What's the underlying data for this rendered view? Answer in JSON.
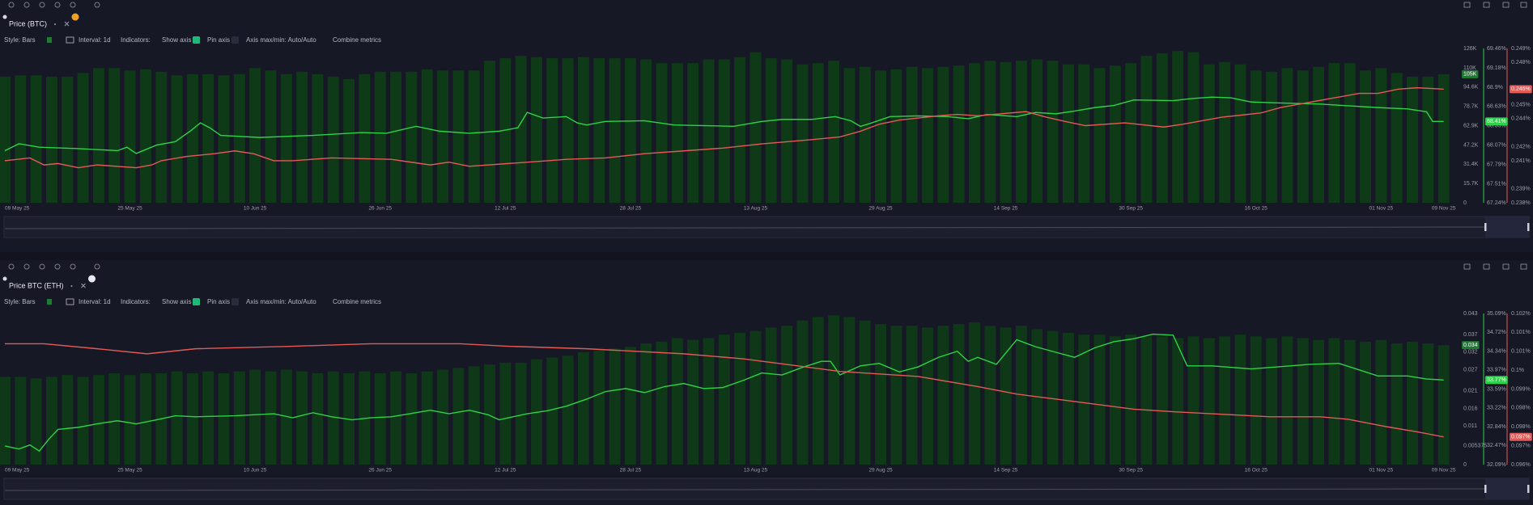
{
  "chart_data": [
    {
      "type": "bar",
      "title": "Price (BTC)",
      "controls": [
        "Style: Bars",
        "Interval: 1d",
        "Indicators:",
        "Show axis",
        "Pin axis",
        "Axis max/min: Auto/Auto",
        "Combine metrics"
      ],
      "xlim": [
        0,
        94.4
      ],
      "xticks": [
        {
          "value": 0,
          "label": "09 May 25"
        },
        {
          "value": 8,
          "label": "25 May 25"
        },
        {
          "value": 16,
          "label": "10 Jun 25"
        },
        {
          "value": 24,
          "label": "26 Jun 25"
        },
        {
          "value": 32,
          "label": "12 Jul 25"
        },
        {
          "value": 40,
          "label": "28 Jul 25"
        },
        {
          "value": 48,
          "label": "13 Aug 25"
        },
        {
          "value": 56,
          "label": "29 Aug 25"
        },
        {
          "value": 64,
          "label": "14 Sep 25"
        },
        {
          "value": 72,
          "label": "30 Sep 25"
        },
        {
          "value": 80,
          "label": "16 Oct 25"
        },
        {
          "value": 88,
          "label": "01 Nov 25"
        },
        {
          "value": 92,
          "label": "09 Nov 25"
        }
      ],
      "ylim": [
        0,
        126000
      ],
      "yticks": [
        0,
        {
          "value": 15700,
          "label": "15.7K"
        },
        {
          "value": 31400,
          "label": "31.4K"
        },
        {
          "value": 47200,
          "label": "47.2K"
        },
        {
          "value": 62900,
          "label": "62.9K"
        },
        {
          "value": 78700,
          "label": "78.7K"
        },
        {
          "value": 94600,
          "label": "94.6K"
        },
        {
          "value": 110000,
          "label": "110K"
        },
        {
          "value": 126000,
          "label": "126K"
        }
      ],
      "y2lim": [
        67.24,
        69.46
      ],
      "y2ticks": [
        {
          "value": 67.24,
          "label": "67.24%"
        },
        {
          "value": 67.51,
          "label": "67.51%"
        },
        {
          "value": 67.79,
          "label": "67.79%"
        },
        {
          "value": 68.07,
          "label": "68.07%"
        },
        {
          "value": 68.35,
          "label": "68.35%"
        },
        {
          "value": 68.63,
          "label": "68.63%"
        },
        {
          "value": 68.9,
          "label": "68.9%"
        },
        {
          "value": 69.18,
          "label": "69.18%"
        },
        {
          "value": 69.46,
          "label": "69.46%"
        }
      ],
      "y3lim": [
        0.238,
        0.249
      ],
      "y3ticks": [
        {
          "value": 0.238,
          "label": "0.238%"
        },
        {
          "value": 0.239,
          "label": "0.239%"
        },
        {
          "value": 0.241,
          "label": "0.241%"
        },
        {
          "value": 0.242,
          "label": "0.242%"
        },
        {
          "value": 0.244,
          "label": "0.244%"
        },
        {
          "value": 0.245,
          "label": "0.245%"
        },
        {
          "value": 0.246,
          "label": "0.246%"
        },
        {
          "value": 0.248,
          "label": "0.248%"
        },
        {
          "value": 0.249,
          "label": "0.249%"
        }
      ],
      "grid": false,
      "series": [
        {
          "type": "bar",
          "color": "#0f3a18",
          "axis": "y",
          "last_label": "105K",
          "values": [
            103000,
            104000,
            104000,
            103000,
            103000,
            106000,
            110000,
            110000,
            108000,
            109000,
            107000,
            104000,
            105000,
            105000,
            104000,
            105000,
            110000,
            108000,
            105000,
            107000,
            105000,
            103000,
            101000,
            105000,
            107000,
            107000,
            107000,
            109000,
            108000,
            108000,
            108000,
            116000,
            118000,
            120000,
            119000,
            118000,
            118000,
            119000,
            118000,
            118000,
            118000,
            117000,
            114000,
            114000,
            114000,
            117000,
            117000,
            119000,
            123000,
            118000,
            117000,
            113000,
            114000,
            116000,
            110000,
            111000,
            108000,
            109000,
            111000,
            110000,
            111000,
            112000,
            114000,
            116000,
            115000,
            116000,
            117000,
            116000,
            113000,
            113000,
            110000,
            112000,
            114000,
            120000,
            122000,
            124000,
            123000,
            113000,
            115000,
            113000,
            108000,
            107000,
            110000,
            108000,
            111000,
            114000,
            114000,
            108000,
            110000,
            106000,
            103000,
            103000,
            105000
          ]
        },
        {
          "type": "line",
          "color": "#2fd14a",
          "axis": "y2",
          "last_label": "68.41%",
          "x": [
            0,
            0.9,
            2.2,
            4.7,
            7.2,
            7.8,
            8.4,
            9.7,
            10.9,
            11.9,
            12.5,
            13.1,
            13.8,
            16.3,
            19.7,
            22.8,
            24.4,
            26.3,
            27.8,
            29.7,
            31.6,
            32.8,
            33.4,
            34.4,
            35.9,
            36.6,
            37.2,
            38.4,
            40.9,
            42.8,
            46.6,
            48.4,
            49.7,
            51.6,
            53.1,
            54.1,
            54.7,
            55.3,
            56.6,
            58.4,
            60.3,
            61.6,
            62.8,
            64.7,
            65.9,
            67.2,
            68.4,
            69.7,
            70.9,
            72.2,
            74.7,
            75.9,
            77.2,
            78.4,
            79.7,
            80.9,
            84.1,
            87.8,
            89.7,
            90.9,
            91.3,
            92
          ],
          "values": [
            67.99,
            68.09,
            68.04,
            68.02,
            67.99,
            68.04,
            67.95,
            68.07,
            68.12,
            68.28,
            68.39,
            68.32,
            68.21,
            68.18,
            68.21,
            68.25,
            68.24,
            68.34,
            68.27,
            68.24,
            68.27,
            68.32,
            68.54,
            68.46,
            68.48,
            68.39,
            68.36,
            68.41,
            68.42,
            68.36,
            68.34,
            68.41,
            68.44,
            68.44,
            68.48,
            68.42,
            68.34,
            68.38,
            68.48,
            68.49,
            68.48,
            68.45,
            68.51,
            68.48,
            68.54,
            68.52,
            68.56,
            68.61,
            68.64,
            68.72,
            68.71,
            68.74,
            68.76,
            68.75,
            68.69,
            68.68,
            68.66,
            68.61,
            68.59,
            68.55,
            68.41,
            68.41
          ]
        },
        {
          "type": "line",
          "color": "#e35a57",
          "axis": "y3",
          "last_label": "0.246%",
          "x": [
            0,
            1.6,
            2.5,
            3.4,
            4.7,
            5.9,
            8.4,
            9.4,
            10,
            11.6,
            13.4,
            14.7,
            15.9,
            17.2,
            18.4,
            20.9,
            24.7,
            27.2,
            28.4,
            29.7,
            32.2,
            34.7,
            35.9,
            38.4,
            40.9,
            43.4,
            45.9,
            48.4,
            51.6,
            53.4,
            54.7,
            55.9,
            57.2,
            59.7,
            60.9,
            62.2,
            65.3,
            66.6,
            67.8,
            69.1,
            71.6,
            74.1,
            75.3,
            77.8,
            80.3,
            81.6,
            84.1,
            86.6,
            87.8,
            89.1,
            90.3,
            92
          ],
          "values": [
            0.241,
            0.2412,
            0.2407,
            0.2408,
            0.2405,
            0.2407,
            0.2405,
            0.2407,
            0.241,
            0.2413,
            0.2415,
            0.2417,
            0.2415,
            0.241,
            0.241,
            0.2412,
            0.2411,
            0.2407,
            0.2409,
            0.2406,
            0.2408,
            0.241,
            0.2411,
            0.2412,
            0.2415,
            0.2417,
            0.2419,
            0.2422,
            0.2425,
            0.2427,
            0.2431,
            0.2436,
            0.2439,
            0.2442,
            0.2443,
            0.2442,
            0.2445,
            0.2441,
            0.2438,
            0.2435,
            0.2437,
            0.2434,
            0.2436,
            0.2441,
            0.2444,
            0.2448,
            0.2453,
            0.2458,
            0.2458,
            0.2461,
            0.2462,
            0.2461
          ]
        }
      ]
    },
    {
      "type": "bar",
      "title": "Price BTC (ETH)",
      "controls": [
        "Style: Bars",
        "Interval: 1d",
        "Indicators:",
        "Show axis",
        "Pin axis",
        "Axis max/min: Auto/Auto",
        "Combine metrics"
      ],
      "xlim": [
        0,
        94.4
      ],
      "xticks": [
        {
          "value": 0,
          "label": "09 May 25"
        },
        {
          "value": 8,
          "label": "25 May 25"
        },
        {
          "value": 16,
          "label": "10 Jun 25"
        },
        {
          "value": 24,
          "label": "26 Jun 25"
        },
        {
          "value": 32,
          "label": "12 Jul 25"
        },
        {
          "value": 40,
          "label": "28 Jul 25"
        },
        {
          "value": 48,
          "label": "13 Aug 25"
        },
        {
          "value": 56,
          "label": "29 Aug 25"
        },
        {
          "value": 64,
          "label": "14 Sep 25"
        },
        {
          "value": 72,
          "label": "30 Sep 25"
        },
        {
          "value": 80,
          "label": "16 Oct 25"
        },
        {
          "value": 88,
          "label": "01 Nov 25"
        },
        {
          "value": 92,
          "label": "09 Nov 25"
        }
      ],
      "ylim": [
        0,
        0.043
      ],
      "yticks": [
        0,
        0.005375,
        0.011,
        0.016,
        0.021,
        0.027,
        0.032,
        0.037,
        0.043
      ],
      "y2lim": [
        32.09,
        35.09
      ],
      "y2ticks": [
        {
          "value": 32.09,
          "label": "32.09%"
        },
        {
          "value": 32.47,
          "label": "32.47%"
        },
        {
          "value": 32.84,
          "label": "32.84%"
        },
        {
          "value": 33.22,
          "label": "33.22%"
        },
        {
          "value": 33.59,
          "label": "33.59%"
        },
        {
          "value": 33.97,
          "label": "33.97%"
        },
        {
          "value": 34.34,
          "label": "34.34%"
        },
        {
          "value": 34.72,
          "label": "34.72%"
        },
        {
          "value": 35.09,
          "label": "35.09%"
        }
      ],
      "y3lim": [
        0.0962,
        0.1022
      ],
      "y3ticks": [
        {
          "value": 0.0962,
          "label": "0.096%"
        },
        {
          "value": 0.09695,
          "label": "0.097%"
        },
        {
          "value": 0.0977,
          "label": "0.098%"
        },
        {
          "value": 0.09845,
          "label": "0.098%"
        },
        {
          "value": 0.0992,
          "label": "0.099%"
        },
        {
          "value": 0.09995,
          "label": "0.1%"
        },
        {
          "value": 0.1007,
          "label": "0.101%"
        },
        {
          "value": 0.10145,
          "label": "0.101%"
        },
        {
          "value": 0.1022,
          "label": "0.102%"
        }
      ],
      "grid": false,
      "series": [
        {
          "type": "bar",
          "color": "#0e3817",
          "axis": "y",
          "last_label": "0.034",
          "values": [
            0.025,
            0.025,
            0.0245,
            0.025,
            0.0255,
            0.025,
            0.0255,
            0.026,
            0.0255,
            0.026,
            0.026,
            0.0265,
            0.026,
            0.0265,
            0.026,
            0.0265,
            0.027,
            0.0265,
            0.027,
            0.0265,
            0.026,
            0.0265,
            0.026,
            0.0265,
            0.026,
            0.0265,
            0.026,
            0.0265,
            0.027,
            0.0275,
            0.028,
            0.0285,
            0.029,
            0.029,
            0.03,
            0.0305,
            0.031,
            0.032,
            0.0325,
            0.033,
            0.0335,
            0.0345,
            0.035,
            0.036,
            0.0355,
            0.036,
            0.037,
            0.0375,
            0.038,
            0.039,
            0.0395,
            0.041,
            0.042,
            0.0425,
            0.042,
            0.041,
            0.04,
            0.0395,
            0.0395,
            0.039,
            0.0395,
            0.04,
            0.0405,
            0.0395,
            0.039,
            0.0395,
            0.0385,
            0.038,
            0.0375,
            0.037,
            0.037,
            0.0365,
            0.037,
            0.0365,
            0.0365,
            0.036,
            0.0365,
            0.036,
            0.0365,
            0.037,
            0.0365,
            0.036,
            0.0365,
            0.036,
            0.0355,
            0.036,
            0.0355,
            0.035,
            0.0355,
            0.0345,
            0.035,
            0.0345,
            0.034
          ]
        },
        {
          "type": "line",
          "color": "#2fd14a",
          "axis": "y2",
          "last_label": "33.77%",
          "x": [
            0,
            0.9,
            1.6,
            2.2,
            2.8,
            3.4,
            4.7,
            5.9,
            7.2,
            8.4,
            9.7,
            10.9,
            12.2,
            14.7,
            17.2,
            18.4,
            19.7,
            20.9,
            22.2,
            23.4,
            24.7,
            25.9,
            27.2,
            28.4,
            29.7,
            30.9,
            31.6,
            32.2,
            33.4,
            34.7,
            35.9,
            37.2,
            38.4,
            39.7,
            40.9,
            42.2,
            43.4,
            44.7,
            45.9,
            47.2,
            48.4,
            49.7,
            50.9,
            52.2,
            52.8,
            53.4,
            54.7,
            55.9,
            57.2,
            58.4,
            59.7,
            60.9,
            61.6,
            62.2,
            63.4,
            64.7,
            65.9,
            67.2,
            68.4,
            69.7,
            70.9,
            72.2,
            73.4,
            74.7,
            75.6,
            77.2,
            79.7,
            82.2,
            83.4,
            85.3,
            86.6,
            87.8,
            89.7,
            90.9,
            92
          ],
          "values": [
            32.46,
            32.4,
            32.48,
            32.36,
            32.59,
            32.79,
            32.83,
            32.9,
            32.96,
            32.9,
            32.98,
            33.06,
            33.04,
            33.06,
            33.1,
            33.02,
            33.12,
            33.04,
            32.98,
            33.02,
            33.04,
            33.1,
            33.17,
            33.1,
            33.17,
            33.08,
            32.98,
            33.02,
            33.1,
            33.16,
            33.25,
            33.39,
            33.54,
            33.6,
            33.52,
            33.64,
            33.7,
            33.6,
            33.62,
            33.76,
            33.91,
            33.87,
            34.01,
            34.14,
            34.14,
            33.87,
            34.05,
            34.1,
            33.93,
            34.03,
            34.22,
            34.34,
            34.14,
            34.22,
            34.08,
            34.57,
            34.43,
            34.32,
            34.22,
            34.41,
            34.53,
            34.59,
            34.68,
            34.66,
            34.05,
            34.05,
            33.99,
            34.05,
            34.08,
            34.1,
            33.97,
            33.85,
            33.85,
            33.79,
            33.77
          ]
        },
        {
          "type": "line",
          "color": "#e35a57",
          "axis": "y3",
          "last_label": "0.097%",
          "x": [
            0,
            2.5,
            5.9,
            9.1,
            12.2,
            18.4,
            23.4,
            29.1,
            32.2,
            37.2,
            43.4,
            47.2,
            49.7,
            53.4,
            55.9,
            58.4,
            62.2,
            64.7,
            67.2,
            69.7,
            72.2,
            74.7,
            77.8,
            80.9,
            84.1,
            85.9,
            88.4,
            90.3,
            92
          ],
          "values": [
            0.101,
            0.101,
            0.1008,
            0.1006,
            0.1008,
            0.1009,
            0.101,
            0.101,
            0.1009,
            0.1008,
            0.1006,
            0.1004,
            0.1002,
            0.0999,
            0.0998,
            0.0997,
            0.0993,
            0.099,
            0.0988,
            0.0986,
            0.0984,
            0.0983,
            0.0982,
            0.0981,
            0.0981,
            0.098,
            0.0977,
            0.0975,
            0.0973
          ]
        }
      ]
    }
  ]
}
